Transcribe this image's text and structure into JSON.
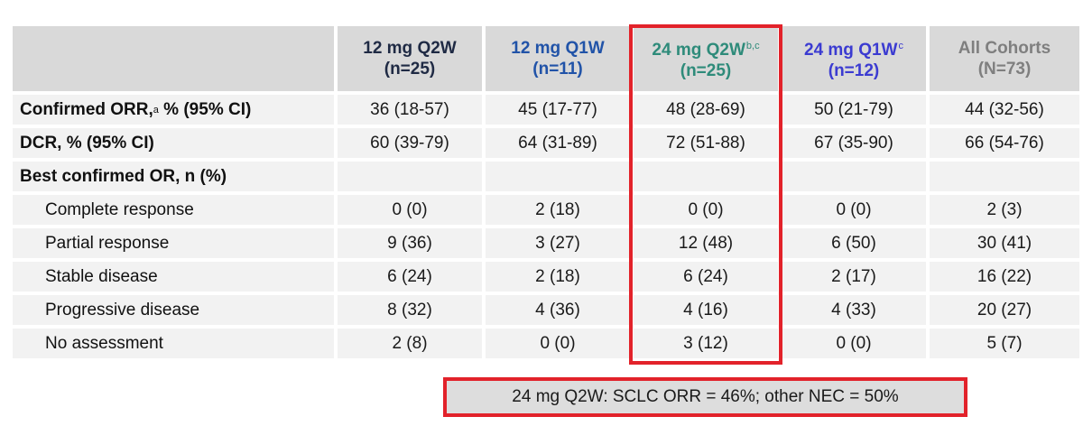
{
  "colors": {
    "c0": "#1f2a44",
    "c1": "#2153a8",
    "c2": "#2e8b7a",
    "c3": "#3b3bd1",
    "c4": "#7f7f7f",
    "highlight": "#e2222a"
  },
  "columns": [
    {
      "name": "12 mg Q2W",
      "sup": "",
      "n": "(n=25)"
    },
    {
      "name": "12 mg Q1W",
      "sup": "",
      "n": "(n=11)"
    },
    {
      "name": "24 mg Q2W",
      "sup": "b,c",
      "n": "(n=25)"
    },
    {
      "name": "24 mg Q1W",
      "sup": "c",
      "n": "(n=12)"
    },
    {
      "name": "All Cohorts",
      "sup": "",
      "n": "(N=73)"
    }
  ],
  "rows": [
    {
      "label": "Confirmed ORR,",
      "label_sup": "a",
      "label_suffix": " % (95% CI)",
      "values": [
        "36 (18-57)",
        "45 (17-77)",
        "48 (28-69)",
        "50 (21-79)",
        "44 (32-56)"
      ]
    },
    {
      "label": "DCR, % (95% CI)",
      "label_sup": "",
      "label_suffix": "",
      "values": [
        "60 (39-79)",
        "64 (31-89)",
        "72 (51-88)",
        "67 (35-90)",
        "66 (54-76)"
      ]
    },
    {
      "label": "Best confirmed OR, n (%)",
      "label_sup": "",
      "label_suffix": "",
      "values": [
        "",
        "",
        "",
        "",
        ""
      ]
    },
    {
      "label": "Complete response",
      "label_sup": "",
      "label_suffix": "",
      "values": [
        "0 (0)",
        "2 (18)",
        "0 (0)",
        "0 (0)",
        "2 (3)"
      ]
    },
    {
      "label": "Partial response",
      "label_sup": "",
      "label_suffix": "",
      "values": [
        "9 (36)",
        "3 (27)",
        "12 (48)",
        "6 (50)",
        "30 (41)"
      ]
    },
    {
      "label": "Stable disease",
      "label_sup": "",
      "label_suffix": "",
      "values": [
        "6 (24)",
        "2 (18)",
        "6 (24)",
        "2 (17)",
        "16 (22)"
      ]
    },
    {
      "label": "Progressive disease",
      "label_sup": "",
      "label_suffix": "",
      "values": [
        "8 (32)",
        "4 (36)",
        "4 (16)",
        "4 (33)",
        "20 (27)"
      ]
    },
    {
      "label": "No assessment",
      "label_sup": "",
      "label_suffix": "",
      "values": [
        "2 (8)",
        "0 (0)",
        "3 (12)",
        "0 (0)",
        "5 (7)"
      ]
    }
  ],
  "footnote": "24 mg Q2W: SCLC ORR = 46%; other NEC = 50%"
}
